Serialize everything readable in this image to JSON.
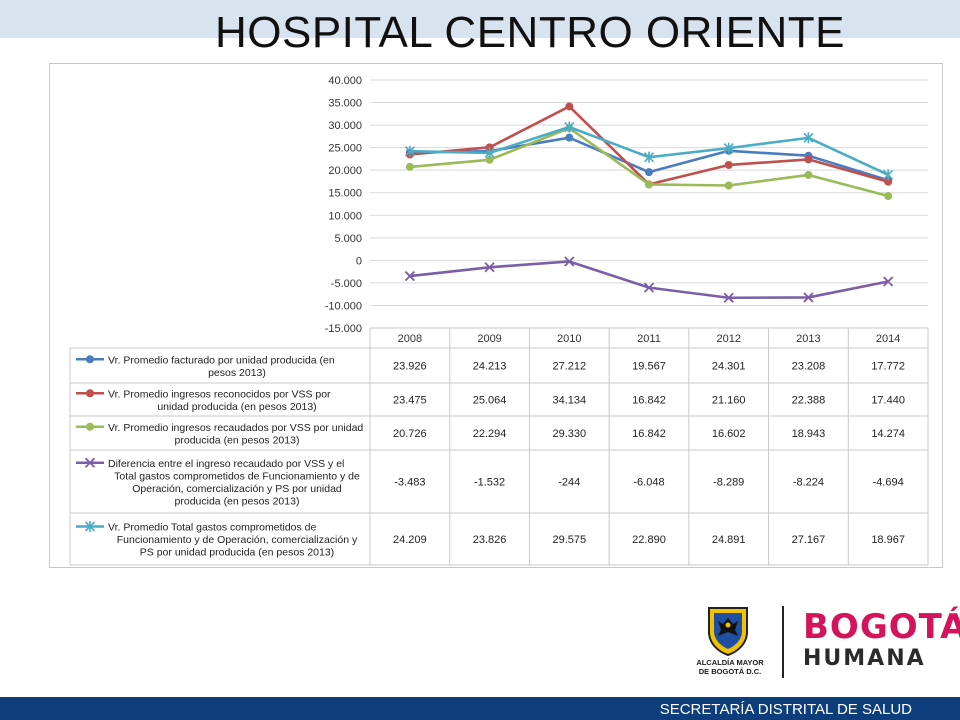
{
  "page": {
    "title": "HOSPITAL CENTRO ORIENTE",
    "footer": "SECRETARÍA DISTRITAL DE SALUD",
    "logo": {
      "alcaldia_line1": "ALCALDÍA MAYOR",
      "alcaldia_line2": "DE BOGOTÁ D.C.",
      "brand_top": "BOGOTÁ",
      "brand_bottom": "HUMANA"
    },
    "colors": {
      "top_band": "#d9e3ef",
      "footer": "#0d3d7a",
      "brand": "#d4145a"
    }
  },
  "chart_data": {
    "type": "line",
    "title": "",
    "xlabel": "",
    "ylabel": "",
    "ylim": [
      -15000,
      40000
    ],
    "ytick_step": 5000,
    "ytick_labels": [
      "40.000",
      "35.000",
      "30.000",
      "25.000",
      "20.000",
      "15.000",
      "10.000",
      "5.000",
      "0",
      "-5.000",
      "-10.000",
      "-15.000"
    ],
    "grid": true,
    "legend": "data-table-below",
    "categories": [
      "2008",
      "2009",
      "2010",
      "2011",
      "2012",
      "2013",
      "2014"
    ],
    "series": [
      {
        "name_lines": [
          "Vr. Promedio facturado por unidad producida (en",
          "pesos 2013)"
        ],
        "color": "#4a7cc0",
        "marker": "circle",
        "values": [
          23926,
          24213,
          27212,
          19567,
          24301,
          23208,
          17772
        ],
        "labels": [
          "23.926",
          "24.213",
          "27.212",
          "19.567",
          "24.301",
          "23.208",
          "17.772"
        ]
      },
      {
        "name_lines": [
          "Vr. Promedio ingresos reconocidos por VSS por",
          "unidad producida (en pesos 2013)"
        ],
        "color": "#c0504d",
        "marker": "circle",
        "values": [
          23475,
          25064,
          34134,
          16842,
          21160,
          22388,
          17440
        ],
        "labels": [
          "23.475",
          "25.064",
          "34.134",
          "16.842",
          "21.160",
          "22.388",
          "17.440"
        ]
      },
      {
        "name_lines": [
          "Vr. Promedio ingresos recaudados por VSS por unidad",
          "producida (en pesos 2013)"
        ],
        "color": "#9bbb59",
        "marker": "circle",
        "values": [
          20726,
          22294,
          29330,
          16842,
          16602,
          18943,
          14274
        ],
        "labels": [
          "20.726",
          "22.294",
          "29.330",
          "16.842",
          "16.602",
          "18.943",
          "14.274"
        ]
      },
      {
        "name_lines": [
          "Diferencia entre el ingreso recaudado por VSS y el",
          "Total gastos comprometidos de Funcionamiento y de",
          "Operación, comercialización y PS por unidad",
          "producida (en pesos 2013)"
        ],
        "color": "#7b5ea7",
        "marker": "x",
        "values": [
          -3483,
          -1532,
          -244,
          -6048,
          -8289,
          -8224,
          -4694
        ],
        "labels": [
          "-3.483",
          "-1.532",
          "-244",
          "-6.048",
          "-8.289",
          "-8.224",
          "-4.694"
        ]
      },
      {
        "name_lines": [
          "Vr. Promedio Total gastos comprometidos de",
          "Funcionamiento y de Operación, comercialización y",
          "PS por unidad producida (en pesos 2013)"
        ],
        "color": "#4bacc6",
        "marker": "star",
        "values": [
          24209,
          23826,
          29575,
          22890,
          24891,
          27167,
          18967
        ],
        "labels": [
          "24.209",
          "23.826",
          "29.575",
          "22.890",
          "24.891",
          "27.167",
          "18.967"
        ]
      }
    ]
  }
}
